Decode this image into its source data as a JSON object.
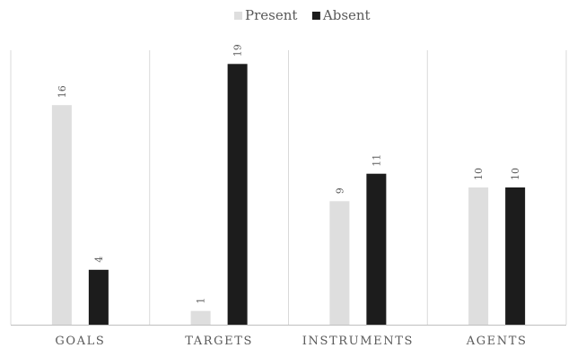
{
  "chart_data": {
    "type": "bar",
    "title": "",
    "xlabel": "",
    "ylabel": "",
    "categories": [
      "GOALS",
      "TARGETS",
      "INSTRUMENTS",
      "AGENTS"
    ],
    "series": [
      {
        "name": "Present",
        "values": [
          16,
          1,
          9,
          10
        ],
        "color": "#dedede"
      },
      {
        "name": "Absent",
        "values": [
          4,
          19,
          11,
          10
        ],
        "color": "#1c1c1c"
      }
    ],
    "ylim": [
      0,
      20
    ],
    "grid": false,
    "legend": "top-center",
    "data_labels": true,
    "data_label_orientation": "vertical",
    "category_separator_color": "#d9d9d9",
    "axis_color": "#bfbfbf"
  }
}
